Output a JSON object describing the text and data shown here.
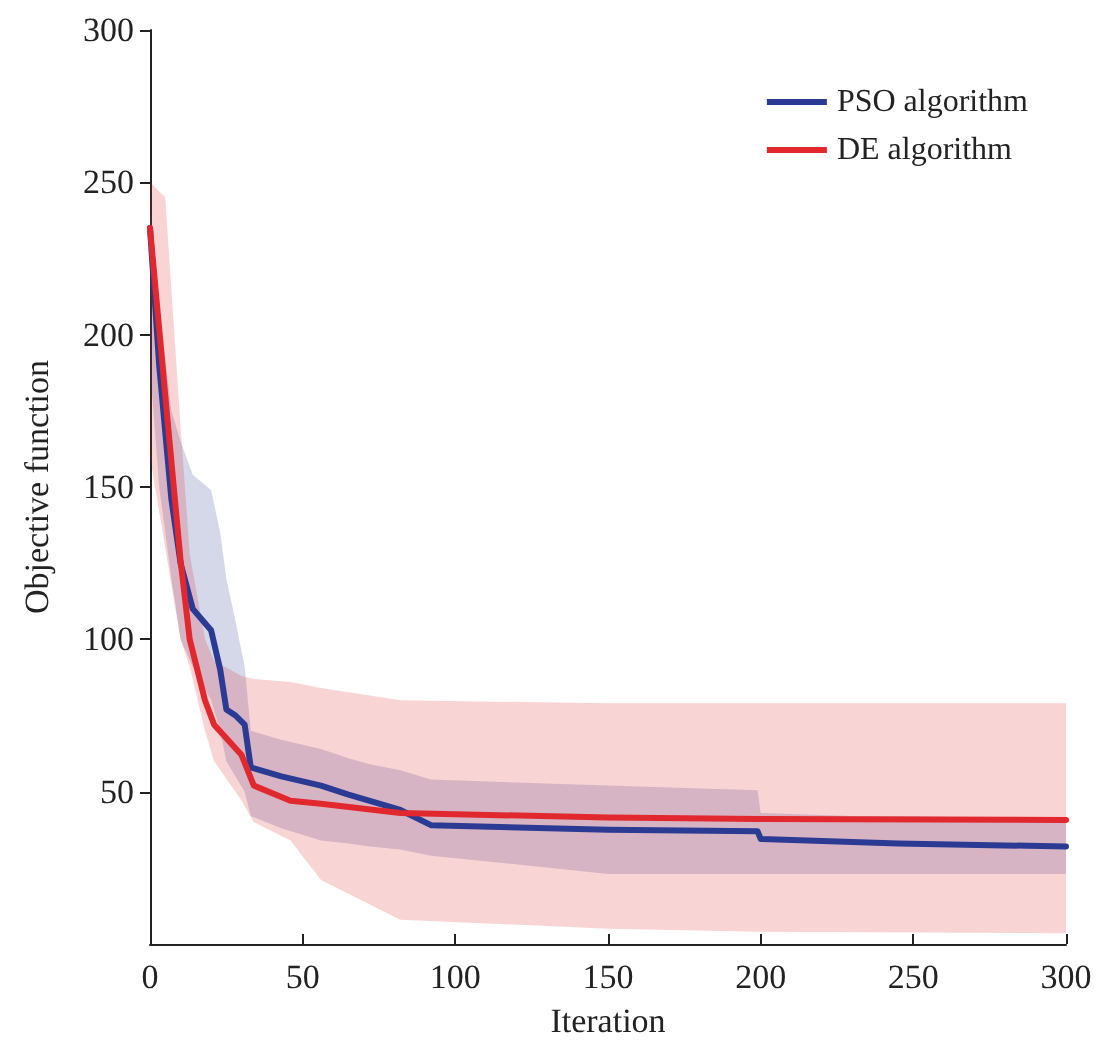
{
  "chart_data": {
    "type": "line",
    "xlabel": "Iteration",
    "ylabel": "Objective function",
    "xlim": [
      0,
      300
    ],
    "xticks": [
      0,
      50,
      100,
      150,
      200,
      250,
      300
    ],
    "ylim": [
      0,
      300
    ],
    "yticks": [
      50,
      100,
      150,
      200,
      250,
      300
    ],
    "grid": false,
    "legend": "top right",
    "marker": "none",
    "line_style": "solid",
    "series": [
      {
        "name": "PSO algorithm",
        "color": "#2b3b93",
        "x": [
          0,
          3,
          7,
          10,
          14,
          20,
          23,
          25,
          28,
          31,
          33,
          43,
          56,
          65,
          72,
          82,
          92,
          150,
          199,
          200,
          230,
          245,
          300
        ],
        "values": [
          235,
          190,
          146,
          125,
          110,
          103,
          90,
          77,
          75,
          72,
          58,
          55,
          52,
          49,
          47,
          44,
          39,
          37.5,
          37,
          34.5,
          33.5,
          33,
          32
        ],
        "lower": [
          190,
          150,
          120,
          100,
          91,
          80,
          70,
          60,
          55,
          50,
          42,
          38,
          34,
          33,
          32,
          31,
          29,
          23,
          23,
          23,
          23,
          23,
          23
        ],
        "upper": [
          245,
          210,
          175,
          165,
          154,
          149,
          135,
          120,
          106,
          91,
          70,
          67,
          64,
          61,
          59,
          57,
          54,
          52,
          50.5,
          43,
          42,
          42,
          41
        ]
      },
      {
        "name": "DE algorithm",
        "color": "#e0282e",
        "x": [
          0,
          5,
          10,
          13,
          18,
          21,
          30,
          34,
          46,
          56,
          82,
          150,
          200,
          300
        ],
        "values": [
          235,
          180,
          126,
          100,
          80,
          72,
          62,
          52,
          47,
          46,
          43,
          41.5,
          41,
          40.7
        ],
        "lower": [
          160,
          130,
          100,
          91,
          70,
          60,
          47,
          40,
          34,
          21,
          8,
          5,
          4,
          3.5
        ],
        "upper": [
          250,
          245,
          170,
          128,
          100,
          93,
          88,
          87,
          86,
          84,
          80,
          79,
          79,
          79
        ]
      }
    ]
  }
}
